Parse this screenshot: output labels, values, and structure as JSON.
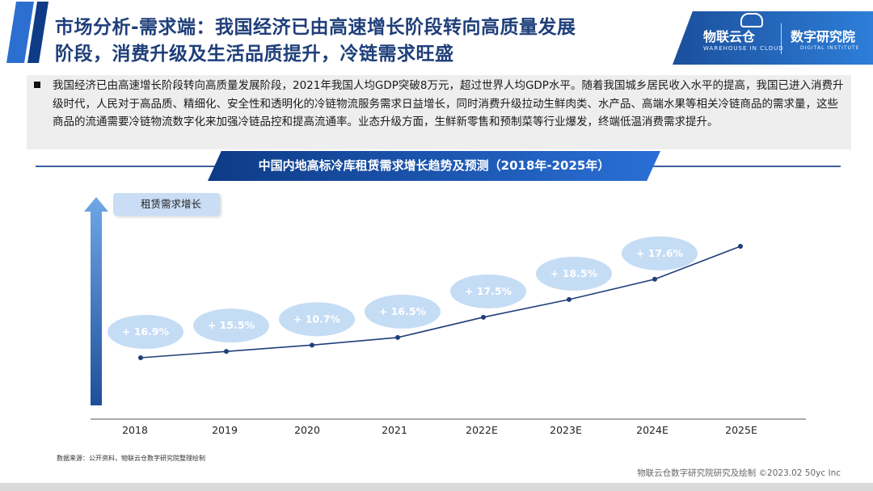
{
  "header": {
    "title_line1": "市场分析-需求端：我国经济已由高速增长阶段转向高质量发展",
    "title_line2": "阶段，消费升级及生活品质提升，冷链需求旺盛"
  },
  "logo": {
    "brand": "物联云仓",
    "brand_sub": "WAREHOUSE IN CLOUD",
    "institute": "数字研究院",
    "institute_sub": "DIGITAL INSTITUTE"
  },
  "summary": {
    "text": "我国经济已由高速增长阶段转向高质量发展阶段，2021年我国人均GDP突破8万元，超过世界人均GDP水平。随着我国城乡居民收入水平的提高，我国已进入消费升级时代，人民对于高品质、精细化、安全性和透明化的冷链物流服务需求日益增长，同时消费升级拉动生鲜肉类、水产品、高端水果等相关冷链商品的需求量，这些商品的流通需要冷链物流数字化来加强冷链品控和提高流通率。业态升级方面，生鲜新零售和预制菜等行业爆发，终端低温消费需求提升。"
  },
  "chart_data": {
    "type": "line",
    "title": "中国内地高标冷库租赁需求增长趋势及预测（2018年-2025年）",
    "ylabel": "租赁需求增长",
    "categories": [
      "2018",
      "2019",
      "2020",
      "2021",
      "2022E",
      "2023E",
      "2024E",
      "2025E"
    ],
    "data_labels": [
      "+ 16.9%",
      "+ 15.5%",
      "+ 10.7%",
      "+ 16.5%",
      "+ 17.5%",
      "+ 18.5%",
      "+ 17.6%"
    ],
    "growth_rates": [
      16.9,
      15.5,
      10.7,
      16.5,
      17.5,
      18.5,
      17.6
    ],
    "relative_values": [
      0,
      0.05,
      0.1,
      0.16,
      0.32,
      0.46,
      0.62,
      0.88
    ],
    "colors": {
      "line": "#1f3f7a",
      "bubble": "#c5dcf5",
      "bubble_text": "#ffffff"
    }
  },
  "footer": {
    "source": "数据来源：公开资料，物联云仓数字研究院整理绘制",
    "credit": "物联云仓数字研究院研究及绘制    ©2023.02  50yc Inc"
  }
}
